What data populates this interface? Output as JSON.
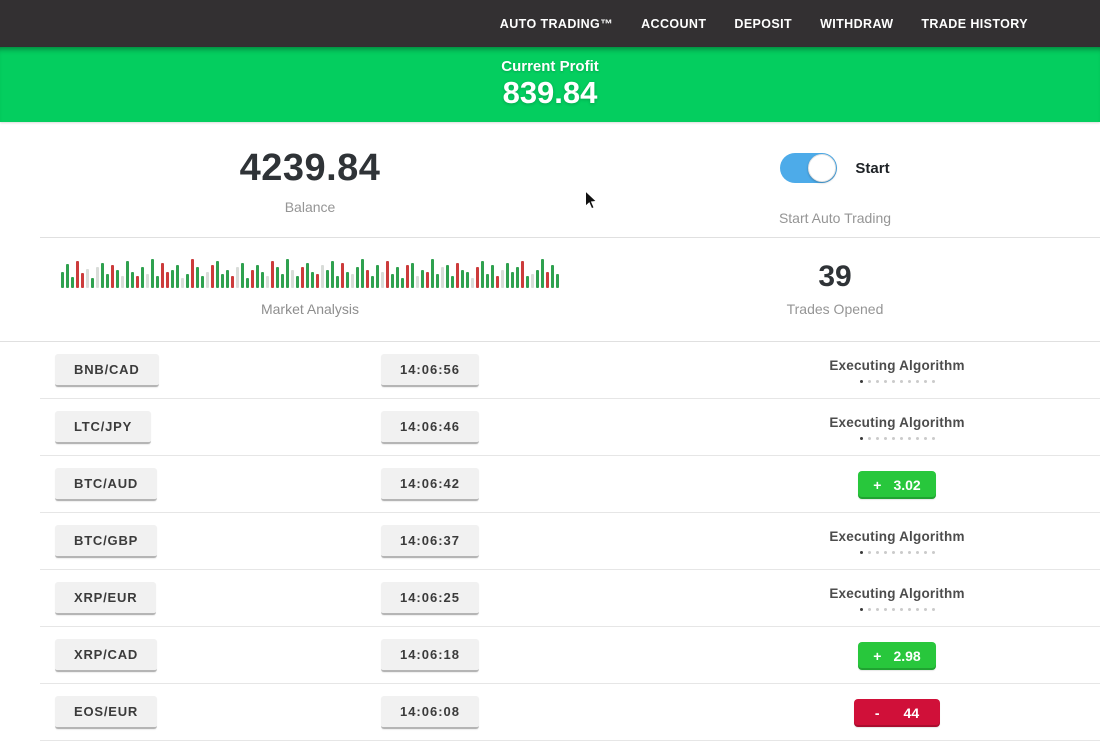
{
  "nav": {
    "items": [
      "AUTO TRADING™",
      "ACCOUNT",
      "DEPOSIT",
      "WITHDRAW",
      "TRADE HISTORY"
    ]
  },
  "profit_banner": {
    "label": "Current Profit",
    "value": "839.84"
  },
  "account": {
    "balance_value": "4239.84",
    "balance_label": "Balance",
    "toggle_label": "Start",
    "toggle_caption": "Start Auto Trading",
    "toggle_state": "on"
  },
  "market": {
    "label": "Market Analysis",
    "trades_opened_value": "39",
    "trades_opened_label": "Trades Opened"
  },
  "chart_data": {
    "type": "bar",
    "title": "Market Analysis",
    "note": "decorative market-pulse candle strip; token = color letter + bar height px",
    "ylim": [
      0,
      30
    ],
    "colors": {
      "g": "#2fa14f",
      "r": "#cc3b3b",
      "l": "#d8dcd8"
    },
    "bars": [
      "g16",
      "g24",
      "g11",
      "r27",
      "r15",
      "l19",
      "g10",
      "l21",
      "g25",
      "g14",
      "r23",
      "g18",
      "l12",
      "g27",
      "g16",
      "r12",
      "g21",
      "l14",
      "g29",
      "g12",
      "r25",
      "r16",
      "g18",
      "g23",
      "l10",
      "g14",
      "r29",
      "g21",
      "g12",
      "l16",
      "r23",
      "g27",
      "g14",
      "g18",
      "r12",
      "l21",
      "g25",
      "g10",
      "r18",
      "g23",
      "g16",
      "l12",
      "r27",
      "g21",
      "g14",
      "g29",
      "l18",
      "g12",
      "r21",
      "g25",
      "g16",
      "r14",
      "l23",
      "g18",
      "g27",
      "g12",
      "r25",
      "g16",
      "l14",
      "g21",
      "g29",
      "r18",
      "g12",
      "g23",
      "l16",
      "r27",
      "g14",
      "g21",
      "g10",
      "r23",
      "g25",
      "l12",
      "g18",
      "r16",
      "g29",
      "g14",
      "l21",
      "g23",
      "g12",
      "r25",
      "g18",
      "g16",
      "l10",
      "r21",
      "g27",
      "g14",
      "g23",
      "r12",
      "l18",
      "g25",
      "g16",
      "g21",
      "r27",
      "g12",
      "l14",
      "g18",
      "g29",
      "r16",
      "g23",
      "g14"
    ]
  },
  "trades": {
    "executing_label": "Executing Algorithm",
    "rows": [
      {
        "pair": "BNB/CAD",
        "time": "14:06:56",
        "status": "executing",
        "sign": "",
        "amount": ""
      },
      {
        "pair": "LTC/JPY",
        "time": "14:06:46",
        "status": "executing",
        "sign": "",
        "amount": ""
      },
      {
        "pair": "BTC/AUD",
        "time": "14:06:42",
        "status": "profit",
        "sign": "+",
        "amount": "3.02"
      },
      {
        "pair": "BTC/GBP",
        "time": "14:06:37",
        "status": "executing",
        "sign": "",
        "amount": ""
      },
      {
        "pair": "XRP/EUR",
        "time": "14:06:25",
        "status": "executing",
        "sign": "",
        "amount": ""
      },
      {
        "pair": "XRP/CAD",
        "time": "14:06:18",
        "status": "profit",
        "sign": "+",
        "amount": "2.98"
      },
      {
        "pair": "EOS/EUR",
        "time": "14:06:08",
        "status": "loss",
        "sign": "-",
        "amount": "44"
      }
    ]
  },
  "colors": {
    "nav_bg": "#333032",
    "banner_green": "#04ce5f",
    "profit_green": "#28c73c",
    "loss_red": "#d01039",
    "toggle_blue": "#4dabe9"
  }
}
